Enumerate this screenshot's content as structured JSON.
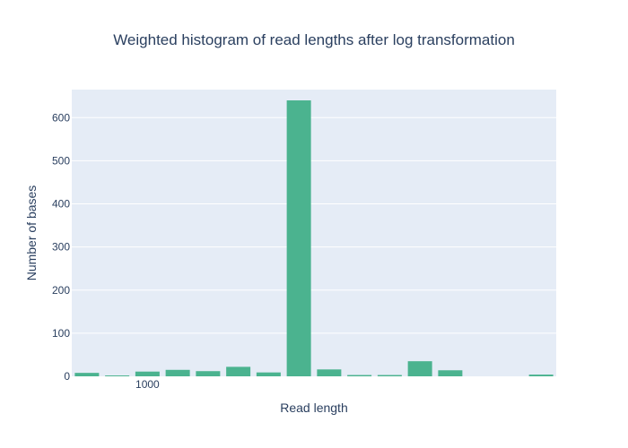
{
  "chart_data": {
    "type": "bar",
    "title": "Weighted histogram of read lengths after log transformation",
    "xlabel": "Read length",
    "ylabel": "Number of bases",
    "ylim": [
      0,
      665
    ],
    "yticks": [
      0,
      100,
      200,
      300,
      400,
      500,
      600
    ],
    "xticks": [
      {
        "label": "1000",
        "bin": 2.5
      }
    ],
    "bin_count": 16,
    "values": [
      8,
      2,
      11,
      15,
      12,
      22,
      9,
      640,
      16,
      3,
      3,
      35,
      14,
      0,
      0,
      4
    ],
    "grid": true,
    "legend": "none",
    "colors": {
      "bar": "#4bb38f",
      "plot_bg": "#e5ecf6",
      "grid": "#ffffff",
      "text": "#2a3f5f"
    }
  }
}
